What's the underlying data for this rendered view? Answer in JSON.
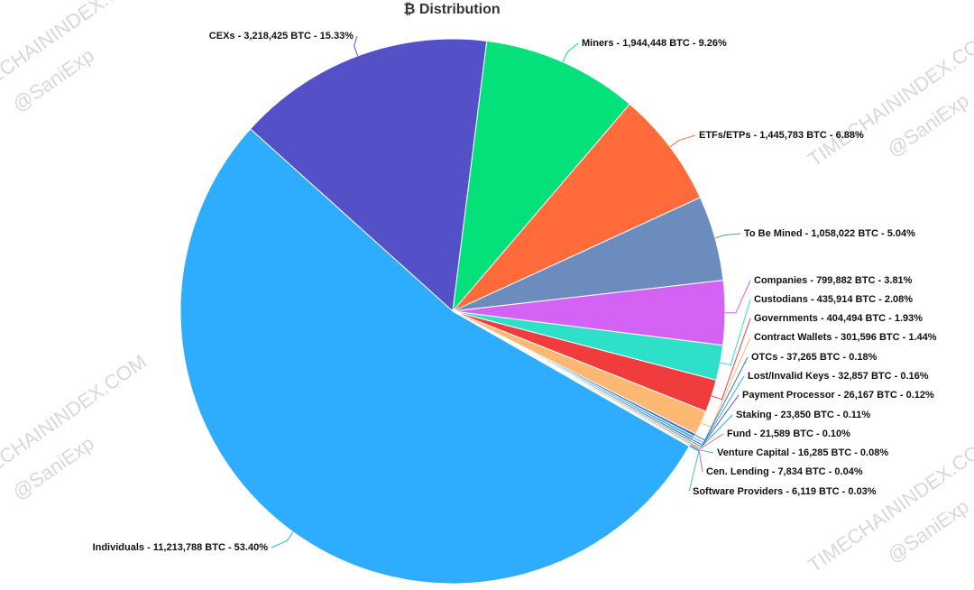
{
  "chart_data": {
    "type": "pie",
    "title": "₿ Distribution",
    "labels": [
      "CEXs - 3,218,425 BTC - 15.33%",
      "Miners - 1,944,448 BTC - 9.26%",
      "ETFs/ETPs - 1,445,783 BTC - 6.88%",
      "To Be Mined - 1,058,022 BTC - 5.04%",
      "Companies - 799,882 BTC - 3.81%",
      "Custodians - 435,914 BTC - 2.08%",
      "Governments - 404,494 BTC - 1.93%",
      "Contract Wallets - 301,596 BTC - 1.44%",
      "OTCs - 37,265 BTC - 0.18%",
      "Lost/Invalid Keys - 32,857 BTC - 0.16%",
      "Payment Processor - 26,167 BTC - 0.12%",
      "Staking - 23,850 BTC - 0.11%",
      "Fund - 21,589 BTC - 0.10%",
      "Venture Capital - 16,285 BTC - 0.08%",
      "Cen. Lending - 7,834 BTC - 0.04%",
      "Software Providers - 6,119 BTC - 0.03%",
      "Individuals - 11,213,788 BTC - 53.40%"
    ],
    "values": [
      3218425,
      1944448,
      1445783,
      1058022,
      799882,
      435914,
      404494,
      301596,
      37265,
      32857,
      26167,
      23850,
      21589,
      16285,
      7834,
      6119,
      11213788
    ],
    "colors": [
      "#5350c8",
      "#05e17a",
      "#ff6b3b",
      "#6b8cbd",
      "#d362f5",
      "#2ee0c8",
      "#f03c3c",
      "#ffb871",
      "#3b6fd0",
      "#2ab0e8",
      "#5a4fd0",
      "#10c090",
      "#f07070",
      "#5aa0e0",
      "#c060e0",
      "#30d0b0",
      "#2eadff"
    ]
  },
  "watermarks": [
    "TIMECHAININDEX.COM",
    "@SaniExp"
  ]
}
